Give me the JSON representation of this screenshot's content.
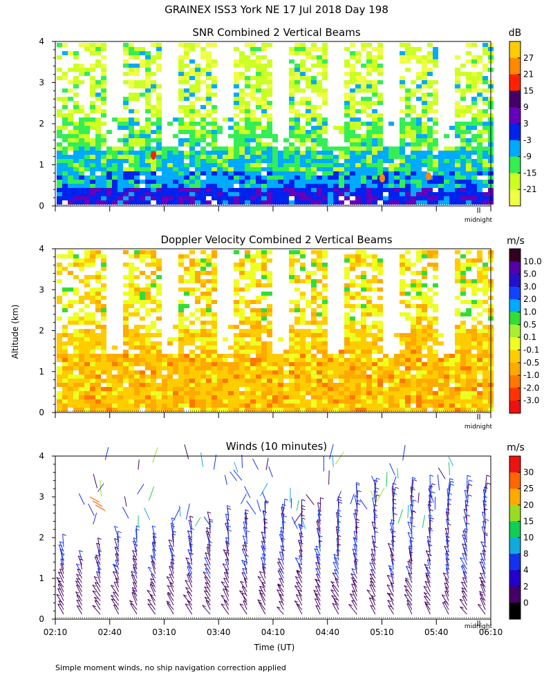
{
  "header": {
    "title": "GRAINEX ISS3 York NE  17 Jul 2018 Day 198"
  },
  "y_axis_label": "Altitude (km)",
  "x_axis_label": "Time (UT)",
  "midnight_label": "midnight",
  "footnote": "Simple moment winds, no ship navigation correction applied",
  "chart_data": [
    {
      "type": "heatmap",
      "title": "SNR Combined 2 Vertical Beams",
      "unit": "dB",
      "ylim": [
        0,
        4
      ],
      "yticks": [
        "0",
        "1",
        "2",
        "3",
        "4"
      ],
      "colorbar": {
        "labels": [
          "27",
          "21",
          "15",
          "9",
          "3",
          "-3",
          "-9",
          "-15",
          "-21"
        ],
        "colors": [
          "#ffcc00",
          "#ff8800",
          "#ff2200",
          "#440066",
          "#6600bb",
          "#0022ee",
          "#00aaff",
          "#33ee55",
          "#ccff22",
          "#eeff44"
        ]
      }
    },
    {
      "type": "heatmap",
      "title": "Doppler Velocity Combined 2 Vertical Beams",
      "unit": "m/s",
      "ylim": [
        0,
        4
      ],
      "yticks": [
        "0",
        "1",
        "2",
        "3",
        "4"
      ],
      "colorbar": {
        "labels": [
          "10.0",
          "5.0",
          "3.0",
          "2.0",
          "1.0",
          "0.5",
          "0.1",
          "-0.1",
          "-0.5",
          "-1.0",
          "-2.0",
          "-3.0"
        ],
        "colors": [
          "#330022",
          "#5500aa",
          "#2211cc",
          "#1144ff",
          "#00aaff",
          "#33dd33",
          "#aaee33",
          "#eeff22",
          "#ffcc00",
          "#ffaa00",
          "#ff7700",
          "#ff3300",
          "#ee1111"
        ]
      }
    },
    {
      "type": "scatter",
      "title": "Winds (10 minutes)",
      "unit": "m/s",
      "ylim": [
        0,
        4
      ],
      "yticks": [
        "0",
        "1",
        "2",
        "3",
        "4"
      ],
      "xticks": [
        "02:10",
        "02:40",
        "03:10",
        "03:40",
        "04:10",
        "04:40",
        "05:10",
        "05:40",
        "06:10"
      ],
      "colorbar": {
        "labels": [
          "30",
          "25",
          "20",
          "15",
          "10",
          "8",
          "4",
          "2",
          "0"
        ],
        "colors": [
          "#ee1111",
          "#ff6600",
          "#ffaa00",
          "#99dd22",
          "#11cc55",
          "#11aadd",
          "#1133ee",
          "#2200cc",
          "#440066",
          "#000000"
        ]
      }
    }
  ]
}
